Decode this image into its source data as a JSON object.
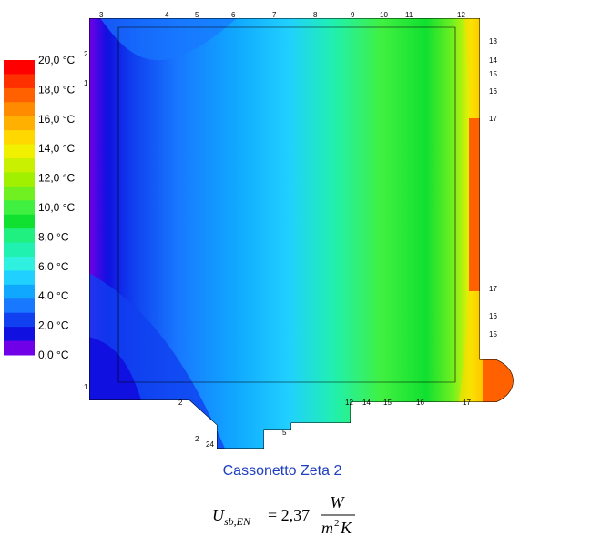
{
  "legend": {
    "labels": [
      "20,0 °C",
      "18,0 °C",
      "16,0 °C",
      "14,0 °C",
      "12,0 °C",
      "10,0 °C",
      "8,0 °C",
      "6,0 °C",
      "4,0 °C",
      "2,0 °C",
      "0,0 °C"
    ],
    "colors": [
      "#ff0000",
      "#ff3000",
      "#ff6000",
      "#ff8c00",
      "#ffb000",
      "#ffd800",
      "#f0f000",
      "#c8f000",
      "#a0f000",
      "#70f020",
      "#40f040",
      "#10e030",
      "#20f080",
      "#20f0b0",
      "#30f0e0",
      "#20d0ff",
      "#10a8ff",
      "#1878ff",
      "#1040f0",
      "#1010e0",
      "#7000e8"
    ]
  },
  "isotherms": [
    "3",
    "4",
    "5",
    "6",
    "7",
    "8",
    "9",
    "10",
    "11",
    "12",
    "13",
    "14",
    "15",
    "16",
    "17",
    "17",
    "16",
    "15",
    "2",
    "1",
    "1",
    "2",
    "2",
    "24",
    "5",
    "12",
    "14",
    "15",
    "16",
    "17"
  ],
  "caption": "Cassonetto Zeta 2",
  "formula": {
    "symbol": "U",
    "subscript": "sb,EN",
    "equals": "= 2,37",
    "numerator": "W",
    "denominator": "m",
    "exponent": "2",
    "unit_tail": "K"
  }
}
